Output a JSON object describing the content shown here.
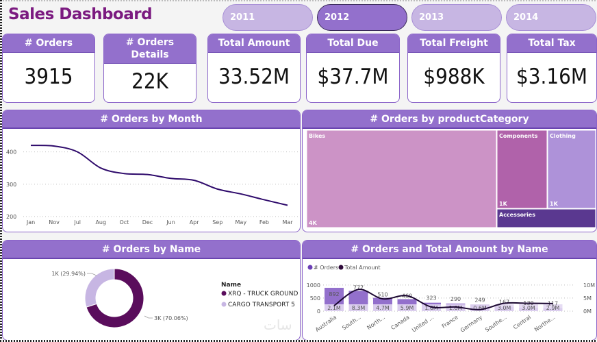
{
  "header": {
    "title": "Sales Dashboard"
  },
  "years": [
    {
      "label": "2011",
      "active": false
    },
    {
      "label": "2012",
      "active": true
    },
    {
      "label": "2013",
      "active": false
    },
    {
      "label": "2014",
      "active": false
    }
  ],
  "kpis": [
    {
      "title": "# Orders",
      "value": "3915"
    },
    {
      "title": "# Orders Details",
      "value": "22K"
    },
    {
      "title": "Total Amount",
      "value": "33.52M"
    },
    {
      "title": "Total Due",
      "value": "$37.7M"
    },
    {
      "title": "Total Freight",
      "value": "$988K"
    },
    {
      "title": "Total Tax",
      "value": "$3.16M"
    }
  ],
  "colors": {
    "accent": "#9370cc",
    "title": "#7b1a80",
    "line": "#2e0a6b",
    "donut_dark": "#5a0d5c",
    "donut_light": "#c7b6e3"
  },
  "chart_data": [
    {
      "id": "orders-by-month",
      "type": "line",
      "title": "# Orders by Month",
      "categories": [
        "Jan",
        "Nov",
        "Jul",
        "Aug",
        "Oct",
        "Dec",
        "Jun",
        "Apr",
        "Sep",
        "May",
        "Feb",
        "Mar"
      ],
      "values": [
        420,
        418,
        400,
        350,
        333,
        330,
        318,
        312,
        285,
        270,
        252,
        235
      ],
      "yticks": [
        "200",
        "300",
        "400"
      ],
      "ylim": [
        200,
        450
      ],
      "grid": true
    },
    {
      "id": "orders-by-category",
      "type": "treemap",
      "title": "# Orders by productCategory",
      "items": [
        {
          "name": "Bikes",
          "value_label": "4K",
          "value": 4000,
          "color": "#cc93c6"
        },
        {
          "name": "Components",
          "value_label": "1K",
          "value": 1000,
          "color": "#b062aa"
        },
        {
          "name": "Clothing",
          "value_label": "1K",
          "value": 1000,
          "color": "#ae92d9"
        },
        {
          "name": "Accessories",
          "value_label": "",
          "value": 500,
          "color": "#5a3890"
        }
      ]
    },
    {
      "id": "orders-by-name",
      "type": "pie",
      "title": "# Orders by Name",
      "legend_title": "Name",
      "slices": [
        {
          "name": "XRQ - TRUCK GROUND",
          "percent": 70.06,
          "label": "3K (70.06%)",
          "color": "#5a0d5c"
        },
        {
          "name": "CARGO TRANSPORT 5",
          "percent": 29.94,
          "label": "1K (29.94%)",
          "color": "#c7b6e3"
        }
      ],
      "legend": "right"
    },
    {
      "id": "orders-amount-by-name",
      "type": "bar",
      "title": "# Orders and Total Amount by Name",
      "legend": [
        "# Orders",
        "Total Amount"
      ],
      "categories": [
        "Australia",
        "South...",
        "North...",
        "Canada",
        "United ...",
        "France",
        "Germany",
        "Southe...",
        "Central",
        "Northe..."
      ],
      "series": [
        {
          "name": "# Orders",
          "values": [
            892,
            777,
            510,
            460,
            323,
            290,
            249,
            167,
            130,
            117
          ],
          "labels": [
            "892",
            "777",
            "510",
            "460",
            "323",
            "290",
            "249",
            "167",
            "130",
            "117"
          ]
        },
        {
          "name": "Total Amount",
          "values": [
            2.1,
            8.3,
            4.7,
            5.9,
            1.6,
            1.6,
            0.6,
            3.0,
            3.0,
            2.9
          ],
          "labels": [
            "2.1M",
            "8.3M",
            "4.7M",
            "5.9M",
            "1.6M",
            "1.6M",
            "0.6M",
            "3.0M",
            "3.0M",
            "2.9M"
          ]
        }
      ],
      "y_left_ticks": [
        "0",
        "500",
        "1000"
      ],
      "y_left_lim": [
        0,
        1100
      ],
      "y_right_ticks": [
        "0M",
        "5M",
        "10M"
      ],
      "y_right_lim": [
        0,
        11
      ]
    }
  ]
}
